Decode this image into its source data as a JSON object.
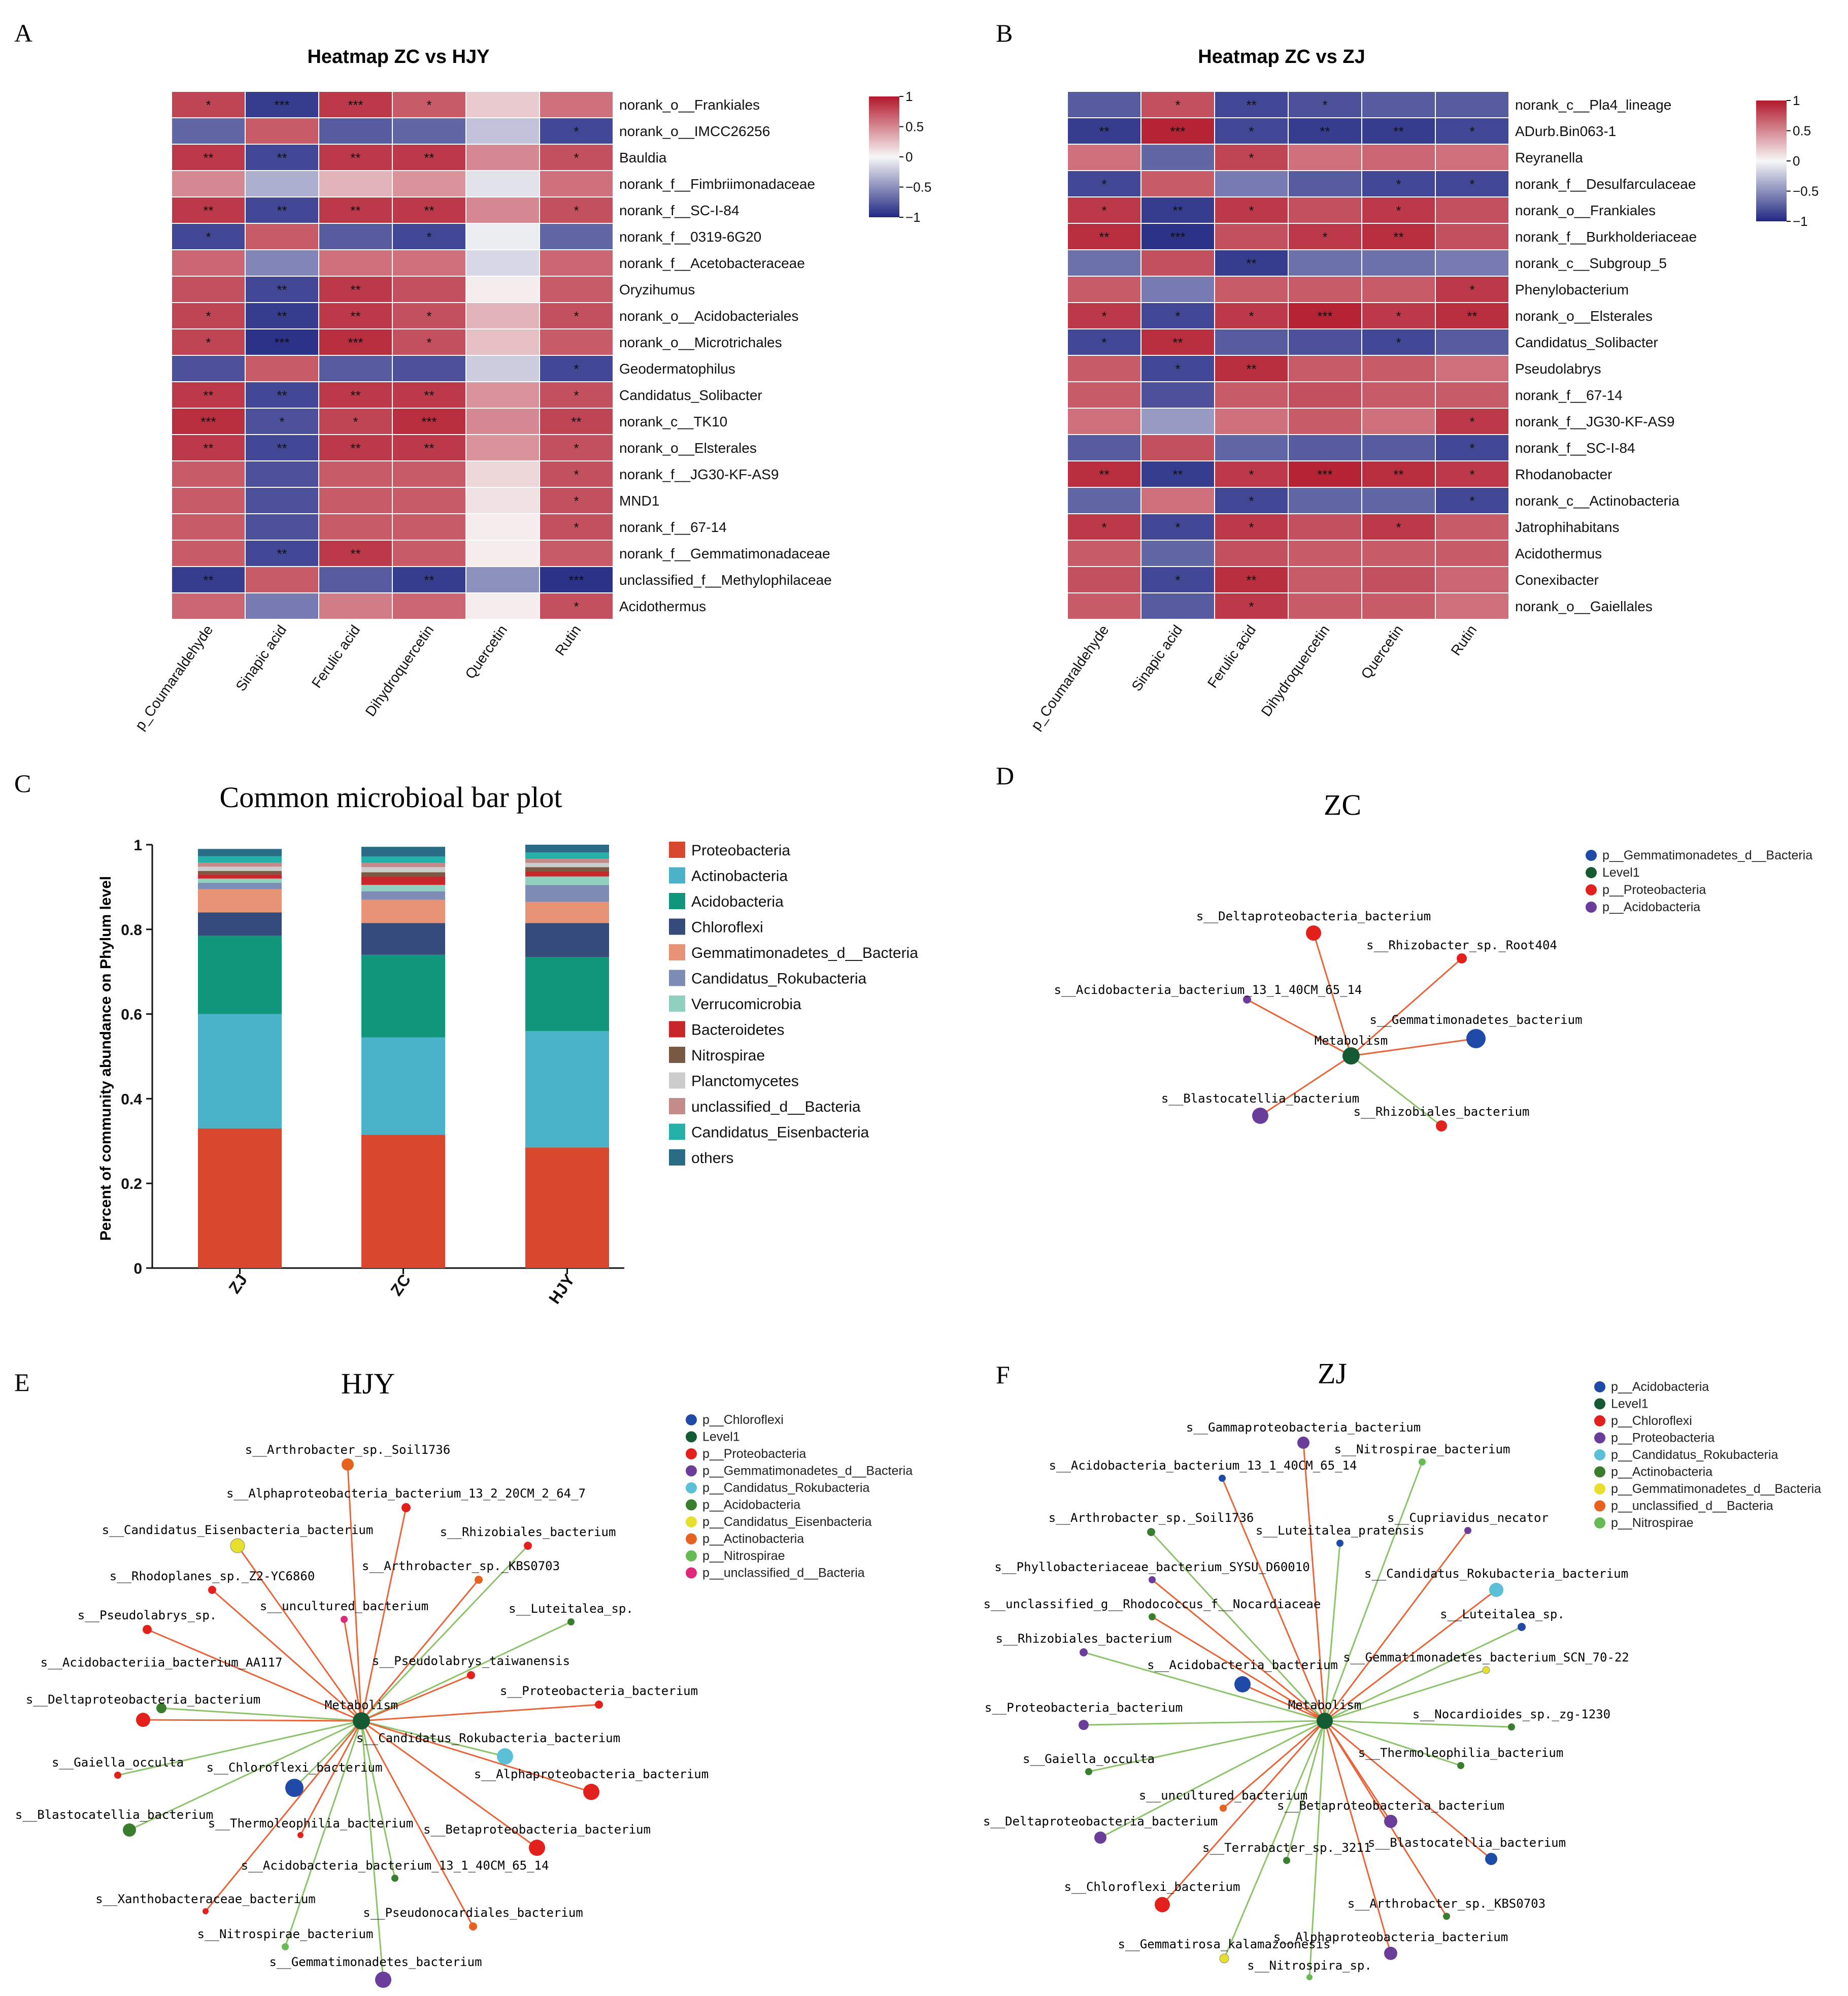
{
  "panels": {
    "A": "A",
    "B": "B",
    "C": "C",
    "D": "D",
    "E": "E",
    "F": "F"
  },
  "heatA": {
    "title": "Heatmap ZC vs HJY",
    "cols": [
      "p_Coumaraldehyde",
      "Sinapic acid",
      "Ferulic acid",
      "Dihydroquercetin",
      "Quercetin",
      "Rutin"
    ],
    "rows": [
      {
        "label": "norank_o__Frankiales",
        "values": [
          0.8,
          -0.9,
          0.85,
          0.7,
          0.2,
          0.6
        ],
        "stars": [
          "*",
          "***",
          "***",
          "*",
          "",
          ""
        ]
      },
      {
        "label": "norank_o__IMCC26256",
        "values": [
          -0.7,
          0.7,
          -0.75,
          -0.7,
          -0.25,
          -0.85
        ],
        "stars": [
          "",
          "",
          "",
          "",
          "",
          "*"
        ]
      },
      {
        "label": "Bauldia",
        "values": [
          0.85,
          -0.85,
          0.85,
          0.85,
          0.5,
          0.75
        ],
        "stars": [
          "**",
          "**",
          "**",
          "**",
          "",
          "*"
        ]
      },
      {
        "label": "norank_f__Fimbriimonadaceae",
        "values": [
          0.5,
          -0.35,
          0.3,
          0.45,
          -0.1,
          0.6
        ],
        "stars": [
          "",
          "",
          "",
          "",
          "",
          ""
        ]
      },
      {
        "label": "norank_f__SC-I-84",
        "values": [
          0.85,
          -0.85,
          0.85,
          0.85,
          0.5,
          0.75
        ],
        "stars": [
          "**",
          "**",
          "**",
          "**",
          "",
          "*"
        ]
      },
      {
        "label": "norank_f__0319-6G20",
        "values": [
          -0.85,
          0.7,
          -0.75,
          -0.85,
          -0.05,
          -0.7
        ],
        "stars": [
          "*",
          "",
          "",
          "*",
          "",
          ""
        ]
      },
      {
        "label": "norank_f__Acetobacteraceae",
        "values": [
          0.65,
          -0.55,
          0.6,
          0.6,
          -0.15,
          0.65
        ],
        "stars": [
          "",
          "",
          "",
          "",
          "",
          ""
        ]
      },
      {
        "label": "Oryzihumus",
        "values": [
          0.75,
          -0.85,
          0.85,
          0.75,
          0.05,
          0.7
        ],
        "stars": [
          "",
          "**",
          "**",
          "",
          "",
          ""
        ]
      },
      {
        "label": "norank_o__Acidobacteriales",
        "values": [
          0.8,
          -0.9,
          0.85,
          0.75,
          0.3,
          0.75
        ],
        "stars": [
          "*",
          "**",
          "**",
          "*",
          "",
          "*"
        ]
      },
      {
        "label": "norank_o__Microtrichales",
        "values": [
          0.8,
          -0.95,
          0.9,
          0.75,
          0.25,
          0.7
        ],
        "stars": [
          "*",
          "***",
          "***",
          "*",
          "",
          ""
        ]
      },
      {
        "label": "Geodermatophilus",
        "values": [
          -0.8,
          0.7,
          -0.75,
          -0.8,
          -0.2,
          -0.85
        ],
        "stars": [
          "",
          "",
          "",
          "",
          "",
          "*"
        ]
      },
      {
        "label": "Candidatus_Solibacter",
        "values": [
          0.85,
          -0.85,
          0.85,
          0.85,
          0.45,
          0.75
        ],
        "stars": [
          "**",
          "**",
          "**",
          "**",
          "",
          "*"
        ]
      },
      {
        "label": "norank_c__TK10",
        "values": [
          0.9,
          -0.8,
          0.8,
          0.9,
          0.5,
          0.8
        ],
        "stars": [
          "***",
          "*",
          "*",
          "***",
          "",
          "**"
        ]
      },
      {
        "label": "norank_o__Elsterales",
        "values": [
          0.85,
          -0.85,
          0.85,
          0.85,
          0.45,
          0.75
        ],
        "stars": [
          "**",
          "**",
          "**",
          "**",
          "",
          "*"
        ]
      },
      {
        "label": "norank_f__JG30-KF-AS9",
        "values": [
          0.7,
          -0.8,
          0.7,
          0.7,
          0.15,
          0.75
        ],
        "stars": [
          "",
          "",
          "",
          "",
          "",
          "*"
        ]
      },
      {
        "label": "MND1",
        "values": [
          0.7,
          -0.8,
          0.7,
          0.7,
          0.1,
          0.75
        ],
        "stars": [
          "",
          "",
          "",
          "",
          "",
          "*"
        ]
      },
      {
        "label": "norank_f__67-14",
        "values": [
          0.7,
          -0.8,
          0.7,
          0.7,
          0.05,
          0.75
        ],
        "stars": [
          "",
          "",
          "",
          "",
          "",
          "*"
        ]
      },
      {
        "label": "norank_f__Gemmatimonadaceae",
        "values": [
          0.7,
          -0.85,
          0.85,
          0.7,
          0.05,
          0.7
        ],
        "stars": [
          "",
          "**",
          "**",
          "",
          "",
          ""
        ]
      },
      {
        "label": "unclassified_f__Methylophilaceae",
        "values": [
          -0.9,
          0.7,
          -0.75,
          -0.9,
          -0.5,
          -0.95
        ],
        "stars": [
          "**",
          "",
          "",
          "**",
          "",
          "***"
        ]
      },
      {
        "label": "Acidothermus",
        "values": [
          0.65,
          -0.6,
          0.55,
          0.65,
          0.05,
          0.75
        ],
        "stars": [
          "",
          "",
          "",
          "",
          "",
          "*"
        ]
      }
    ],
    "legend": {
      "ticks": [
        "1",
        "0.5",
        "0",
        "−0.5",
        "−1"
      ]
    }
  },
  "heatB": {
    "title": "Heatmap ZC vs ZJ",
    "cols": [
      "p_Coumaraldehyde",
      "Sinapic acid",
      "Ferulic acid",
      "Dihydroquercetin",
      "Quercetin",
      "Rutin"
    ],
    "rows": [
      {
        "label": "norank_c__Pla4_lineage",
        "values": [
          -0.75,
          0.75,
          -0.85,
          -0.8,
          -0.75,
          -0.75
        ],
        "stars": [
          "",
          "*",
          "**",
          "*",
          "",
          ""
        ]
      },
      {
        "label": "ADurb.Bin063-1",
        "values": [
          -0.9,
          0.95,
          -0.85,
          -0.9,
          -0.9,
          -0.85
        ],
        "stars": [
          "**",
          "***",
          "*",
          "**",
          "**",
          "*"
        ]
      },
      {
        "label": "Reyranella",
        "values": [
          0.6,
          -0.7,
          0.8,
          0.6,
          0.65,
          0.6
        ],
        "stars": [
          "",
          "",
          "*",
          "",
          "",
          ""
        ]
      },
      {
        "label": "norank_f__Desulfarculaceae",
        "values": [
          -0.85,
          0.7,
          -0.6,
          -0.75,
          -0.85,
          -0.85
        ],
        "stars": [
          "*",
          "",
          "",
          "",
          "*",
          "*"
        ]
      },
      {
        "label": "norank_o__Frankiales",
        "values": [
          0.85,
          -0.9,
          0.85,
          0.75,
          0.85,
          0.75
        ],
        "stars": [
          "*",
          "**",
          "*",
          "",
          "*",
          ""
        ]
      },
      {
        "label": "norank_f__Burkholderiaceae",
        "values": [
          0.9,
          -0.95,
          0.75,
          0.85,
          0.9,
          0.75
        ],
        "stars": [
          "**",
          "***",
          "",
          "*",
          "**",
          ""
        ]
      },
      {
        "label": "norank_c__Subgroup_5",
        "values": [
          -0.65,
          0.75,
          -0.9,
          -0.65,
          -0.65,
          -0.6
        ],
        "stars": [
          "",
          "",
          "**",
          "",
          "",
          ""
        ]
      },
      {
        "label": "Phenylobacterium",
        "values": [
          0.7,
          -0.6,
          0.7,
          0.7,
          0.7,
          0.85
        ],
        "stars": [
          "",
          "",
          "",
          "",
          "",
          "*"
        ]
      },
      {
        "label": "norank_o__Elsterales",
        "values": [
          0.85,
          -0.85,
          0.85,
          0.95,
          0.85,
          0.9
        ],
        "stars": [
          "*",
          "*",
          "*",
          "***",
          "*",
          "**"
        ]
      },
      {
        "label": "Candidatus_Solibacter",
        "values": [
          -0.85,
          0.9,
          -0.75,
          -0.8,
          -0.85,
          -0.75
        ],
        "stars": [
          "*",
          "**",
          "",
          "",
          "*",
          ""
        ]
      },
      {
        "label": "Pseudolabrys",
        "values": [
          0.7,
          -0.85,
          0.9,
          0.7,
          0.7,
          0.6
        ],
        "stars": [
          "",
          "*",
          "**",
          "",
          "",
          ""
        ]
      },
      {
        "label": "norank_f__67-14",
        "values": [
          0.7,
          -0.8,
          0.7,
          0.75,
          0.7,
          0.7
        ],
        "stars": [
          "",
          "",
          "",
          "",
          "",
          ""
        ]
      },
      {
        "label": "norank_f__JG30-KF-AS9",
        "values": [
          0.6,
          -0.45,
          0.6,
          0.7,
          0.6,
          0.85
        ],
        "stars": [
          "",
          "",
          "",
          "",
          "",
          "*"
        ]
      },
      {
        "label": "norank_f__SC-I-84",
        "values": [
          -0.75,
          0.75,
          -0.7,
          -0.75,
          -0.75,
          -0.85
        ],
        "stars": [
          "",
          "",
          "",
          "",
          "",
          "*"
        ]
      },
      {
        "label": "Rhodanobacter",
        "values": [
          0.9,
          -0.9,
          0.85,
          0.95,
          0.9,
          0.85
        ],
        "stars": [
          "**",
          "**",
          "*",
          "***",
          "**",
          "*"
        ]
      },
      {
        "label": "norank_c__Actinobacteria",
        "values": [
          -0.7,
          0.6,
          -0.85,
          -0.7,
          -0.7,
          -0.85
        ],
        "stars": [
          "",
          "",
          "*",
          "",
          "",
          "*"
        ]
      },
      {
        "label": "Jatrophihabitans",
        "values": [
          0.85,
          -0.85,
          0.85,
          0.75,
          0.85,
          0.7
        ],
        "stars": [
          "*",
          "*",
          "*",
          "",
          "*",
          ""
        ]
      },
      {
        "label": "Acidothermus",
        "values": [
          0.7,
          -0.7,
          0.75,
          0.7,
          0.7,
          0.7
        ],
        "stars": [
          "",
          "",
          "",
          "",
          "",
          ""
        ]
      },
      {
        "label": "Conexibacter",
        "values": [
          0.75,
          -0.85,
          0.9,
          0.7,
          0.75,
          0.65
        ],
        "stars": [
          "",
          "*",
          "**",
          "",
          "",
          ""
        ]
      },
      {
        "label": "norank_o__Gaiellales",
        "values": [
          0.7,
          -0.75,
          0.85,
          0.7,
          0.7,
          0.6
        ],
        "stars": [
          "",
          "",
          "*",
          "",
          "",
          ""
        ]
      }
    ],
    "legend": {
      "ticks": [
        "1",
        "0.5",
        "0",
        "−0.5",
        "−1"
      ]
    }
  },
  "chart_data": {
    "type": "bar",
    "title": "Common microbioal bar plot",
    "ylabel": "Percent of community abundance on Phylum level",
    "categories": [
      "ZJ",
      "ZC",
      "HJY"
    ],
    "ylim": [
      0,
      1
    ],
    "yticks": [
      "0",
      "0.2",
      "0.4",
      "0.6",
      "0.8",
      "1"
    ],
    "series": [
      {
        "name": "Proteobacteria",
        "color": "#d9472e",
        "values": [
          0.33,
          0.315,
          0.285
        ]
      },
      {
        "name": "Actinobacteria",
        "color": "#4ab3ca",
        "values": [
          0.27,
          0.23,
          0.275
        ]
      },
      {
        "name": "Acidobacteria",
        "color": "#10967a",
        "values": [
          0.185,
          0.195,
          0.175
        ]
      },
      {
        "name": "Chloroflexi",
        "color": "#354b7c",
        "values": [
          0.055,
          0.075,
          0.08
        ]
      },
      {
        "name": "Gemmatimonadetes_d__Bacteria",
        "color": "#e89276",
        "values": [
          0.055,
          0.055,
          0.05
        ]
      },
      {
        "name": "Candidatus_Rokubacteria",
        "color": "#7d8db5",
        "values": [
          0.015,
          0.02,
          0.04
        ]
      },
      {
        "name": "Verrucomicrobia",
        "color": "#91cfbe",
        "values": [
          0.01,
          0.015,
          0.02
        ]
      },
      {
        "name": "Bacteroidetes",
        "color": "#c9262b",
        "values": [
          0.01,
          0.02,
          0.012
        ]
      },
      {
        "name": "Nitrospirae",
        "color": "#7a5a44",
        "values": [
          0.008,
          0.01,
          0.01
        ]
      },
      {
        "name": "Planctomycetes",
        "color": "#cccccc",
        "values": [
          0.01,
          0.012,
          0.01
        ]
      },
      {
        "name": "unclassified_d__Bacteria",
        "color": "#c28a88",
        "values": [
          0.01,
          0.01,
          0.01
        ]
      },
      {
        "name": "Candidatus_Eisenbacteria",
        "color": "#23b0a8",
        "values": [
          0.015,
          0.015,
          0.015
        ]
      },
      {
        "name": "others",
        "color": "#2a6b85",
        "values": [
          0.017,
          0.023,
          0.018
        ]
      }
    ]
  },
  "netD": {
    "title": "ZC",
    "center": "Metabolism",
    "legend": [
      {
        "label": "p__Gemmatimonadetes_d__Bacteria",
        "color": "#1f4aa8"
      },
      {
        "label": "Level1",
        "color": "#145a32"
      },
      {
        "label": "p__Proteobacteria",
        "color": "#e3201b"
      },
      {
        "label": "p__Acidobacteria",
        "color": "#6a3d9a"
      }
    ]
  },
  "netE": {
    "title": "HJY",
    "center": "Metabolism",
    "legend": [
      {
        "label": "p__Chloroflexi",
        "color": "#1f4aa8"
      },
      {
        "label": "Level1",
        "color": "#145a32"
      },
      {
        "label": "p__Proteobacteria",
        "color": "#e3201b"
      },
      {
        "label": "p__Gemmatimonadetes_d__Bacteria",
        "color": "#6a3d9a"
      },
      {
        "label": "p__Candidatus_Rokubacteria",
        "color": "#5bc0d6"
      },
      {
        "label": "p__Acidobacteria",
        "color": "#3b7d2e"
      },
      {
        "label": "p__Candidatus_Eisenbacteria",
        "color": "#e6e02a"
      },
      {
        "label": "p__Actinobacteria",
        "color": "#e8621f"
      },
      {
        "label": "p__Nitrospirae",
        "color": "#66bb55"
      },
      {
        "label": "p__unclassified_d__Bacteria",
        "color": "#e0287a"
      }
    ]
  },
  "netF": {
    "title": "ZJ",
    "center": "Metabolism",
    "legend": [
      {
        "label": "p__Acidobacteria",
        "color": "#1f4aa8"
      },
      {
        "label": "Level1",
        "color": "#145a32"
      },
      {
        "label": "p__Chloroflexi",
        "color": "#e3201b"
      },
      {
        "label": "p__Proteobacteria",
        "color": "#6a3d9a"
      },
      {
        "label": "p__Candidatus_Rokubacteria",
        "color": "#5bc0d6"
      },
      {
        "label": "p__Actinobacteria",
        "color": "#3b7d2e"
      },
      {
        "label": "p__Gemmatimonadetes_d__Bacteria",
        "color": "#e6e02a"
      },
      {
        "label": "p__unclassified_d__Bacteria",
        "color": "#e8621f"
      },
      {
        "label": "p__Nitrospirae",
        "color": "#66bb55"
      }
    ]
  }
}
